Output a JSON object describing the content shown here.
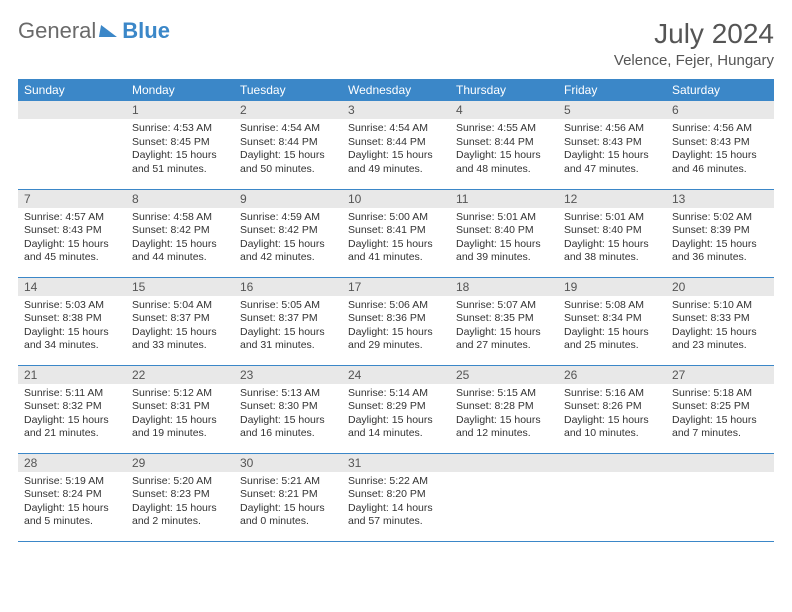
{
  "brand": {
    "word1": "General",
    "word2": "Blue"
  },
  "title": "July 2024",
  "location": "Velence, Fejer, Hungary",
  "colors": {
    "header_bg": "#3b87c8",
    "header_text": "#ffffff",
    "daynum_bg": "#e8e8e8",
    "row_divider": "#3b87c8",
    "text": "#333333",
    "title_text": "#555555"
  },
  "weekdays": [
    "Sunday",
    "Monday",
    "Tuesday",
    "Wednesday",
    "Thursday",
    "Friday",
    "Saturday"
  ],
  "start_weekday": 1,
  "days": [
    {
      "n": 1,
      "sunrise": "4:53 AM",
      "sunset": "8:45 PM",
      "daylight": "15 hours and 51 minutes."
    },
    {
      "n": 2,
      "sunrise": "4:54 AM",
      "sunset": "8:44 PM",
      "daylight": "15 hours and 50 minutes."
    },
    {
      "n": 3,
      "sunrise": "4:54 AM",
      "sunset": "8:44 PM",
      "daylight": "15 hours and 49 minutes."
    },
    {
      "n": 4,
      "sunrise": "4:55 AM",
      "sunset": "8:44 PM",
      "daylight": "15 hours and 48 minutes."
    },
    {
      "n": 5,
      "sunrise": "4:56 AM",
      "sunset": "8:43 PM",
      "daylight": "15 hours and 47 minutes."
    },
    {
      "n": 6,
      "sunrise": "4:56 AM",
      "sunset": "8:43 PM",
      "daylight": "15 hours and 46 minutes."
    },
    {
      "n": 7,
      "sunrise": "4:57 AM",
      "sunset": "8:43 PM",
      "daylight": "15 hours and 45 minutes."
    },
    {
      "n": 8,
      "sunrise": "4:58 AM",
      "sunset": "8:42 PM",
      "daylight": "15 hours and 44 minutes."
    },
    {
      "n": 9,
      "sunrise": "4:59 AM",
      "sunset": "8:42 PM",
      "daylight": "15 hours and 42 minutes."
    },
    {
      "n": 10,
      "sunrise": "5:00 AM",
      "sunset": "8:41 PM",
      "daylight": "15 hours and 41 minutes."
    },
    {
      "n": 11,
      "sunrise": "5:01 AM",
      "sunset": "8:40 PM",
      "daylight": "15 hours and 39 minutes."
    },
    {
      "n": 12,
      "sunrise": "5:01 AM",
      "sunset": "8:40 PM",
      "daylight": "15 hours and 38 minutes."
    },
    {
      "n": 13,
      "sunrise": "5:02 AM",
      "sunset": "8:39 PM",
      "daylight": "15 hours and 36 minutes."
    },
    {
      "n": 14,
      "sunrise": "5:03 AM",
      "sunset": "8:38 PM",
      "daylight": "15 hours and 34 minutes."
    },
    {
      "n": 15,
      "sunrise": "5:04 AM",
      "sunset": "8:37 PM",
      "daylight": "15 hours and 33 minutes."
    },
    {
      "n": 16,
      "sunrise": "5:05 AM",
      "sunset": "8:37 PM",
      "daylight": "15 hours and 31 minutes."
    },
    {
      "n": 17,
      "sunrise": "5:06 AM",
      "sunset": "8:36 PM",
      "daylight": "15 hours and 29 minutes."
    },
    {
      "n": 18,
      "sunrise": "5:07 AM",
      "sunset": "8:35 PM",
      "daylight": "15 hours and 27 minutes."
    },
    {
      "n": 19,
      "sunrise": "5:08 AM",
      "sunset": "8:34 PM",
      "daylight": "15 hours and 25 minutes."
    },
    {
      "n": 20,
      "sunrise": "5:10 AM",
      "sunset": "8:33 PM",
      "daylight": "15 hours and 23 minutes."
    },
    {
      "n": 21,
      "sunrise": "5:11 AM",
      "sunset": "8:32 PM",
      "daylight": "15 hours and 21 minutes."
    },
    {
      "n": 22,
      "sunrise": "5:12 AM",
      "sunset": "8:31 PM",
      "daylight": "15 hours and 19 minutes."
    },
    {
      "n": 23,
      "sunrise": "5:13 AM",
      "sunset": "8:30 PM",
      "daylight": "15 hours and 16 minutes."
    },
    {
      "n": 24,
      "sunrise": "5:14 AM",
      "sunset": "8:29 PM",
      "daylight": "15 hours and 14 minutes."
    },
    {
      "n": 25,
      "sunrise": "5:15 AM",
      "sunset": "8:28 PM",
      "daylight": "15 hours and 12 minutes."
    },
    {
      "n": 26,
      "sunrise": "5:16 AM",
      "sunset": "8:26 PM",
      "daylight": "15 hours and 10 minutes."
    },
    {
      "n": 27,
      "sunrise": "5:18 AM",
      "sunset": "8:25 PM",
      "daylight": "15 hours and 7 minutes."
    },
    {
      "n": 28,
      "sunrise": "5:19 AM",
      "sunset": "8:24 PM",
      "daylight": "15 hours and 5 minutes."
    },
    {
      "n": 29,
      "sunrise": "5:20 AM",
      "sunset": "8:23 PM",
      "daylight": "15 hours and 2 minutes."
    },
    {
      "n": 30,
      "sunrise": "5:21 AM",
      "sunset": "8:21 PM",
      "daylight": "15 hours and 0 minutes."
    },
    {
      "n": 31,
      "sunrise": "5:22 AM",
      "sunset": "8:20 PM",
      "daylight": "14 hours and 57 minutes."
    }
  ],
  "labels": {
    "sunrise": "Sunrise:",
    "sunset": "Sunset:",
    "daylight": "Daylight:"
  }
}
